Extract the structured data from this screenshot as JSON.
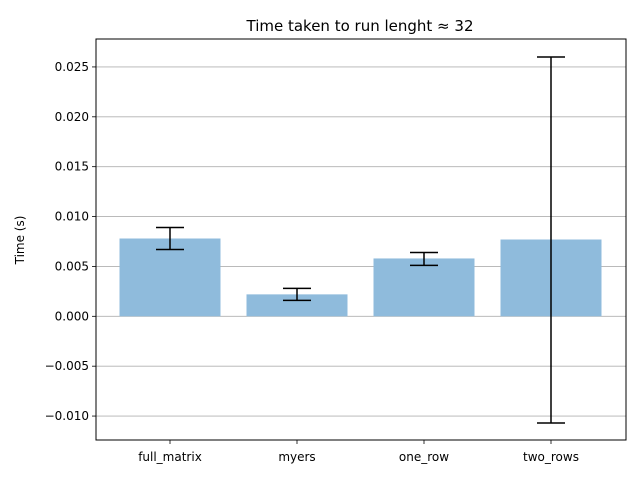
{
  "chart_data": {
    "type": "bar",
    "title": "Time taken to run lenght ≈ 32",
    "xlabel": "",
    "ylabel": "Time (s)",
    "categories": [
      "full_matrix",
      "myers",
      "one_row",
      "two_rows"
    ],
    "values": [
      0.0078,
      0.0022,
      0.0058,
      0.0077
    ],
    "error_low": [
      0.0067,
      0.0016,
      0.0051,
      -0.0107
    ],
    "error_high": [
      0.0089,
      0.0028,
      0.0064,
      0.026
    ],
    "ylim": [
      -0.0124,
      0.0278
    ],
    "yticks": [
      -0.01,
      -0.005,
      0.0,
      0.005,
      0.01,
      0.015,
      0.02,
      0.025
    ],
    "ytick_labels": [
      "−0.010",
      "−0.005",
      "0.000",
      "0.005",
      "0.010",
      "0.015",
      "0.020",
      "0.025"
    ],
    "grid": "horizontal",
    "bar_color": "#8fbbdc",
    "error_color": "#000000",
    "grid_color": "#b0b0b0"
  }
}
